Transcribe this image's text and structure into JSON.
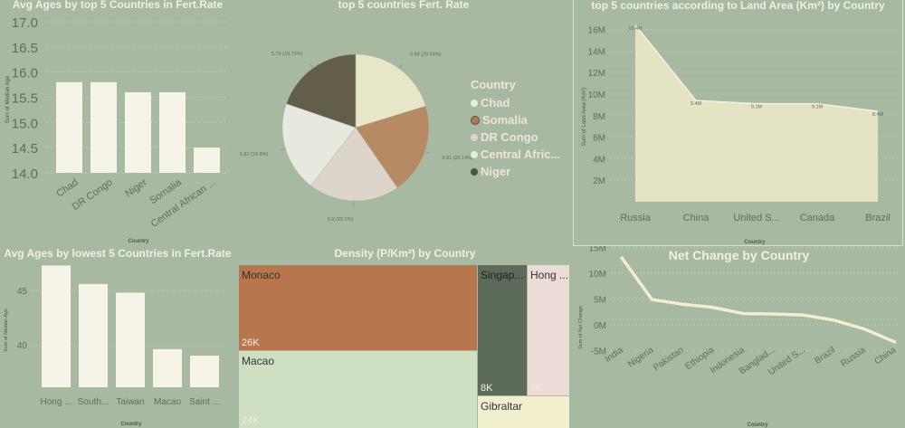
{
  "background": "#a7b9a0",
  "panels": {
    "top_bar": {
      "title": "Avg Ages by top 5 Countries in Fert.Rate"
    },
    "pie": {
      "title": "top 5 countries Fert. Rate",
      "legend_title": "Country"
    },
    "land_area": {
      "title": "top 5 countries according to Land Area (Km²) by Country"
    },
    "low_bar": {
      "title": "Avg Ages by lowest 5 Countries in Fert.Rate"
    },
    "treemap": {
      "title": "Density (P/Km²) by Country"
    },
    "net_change": {
      "title": "Net Change by Country"
    }
  },
  "chart_data": [
    {
      "id": "top_bar",
      "type": "bar",
      "title": "Avg Ages by top 5 Countries in Fert.Rate",
      "categories": [
        "Chad",
        "DR Congo",
        "Niger",
        "Somalia",
        "Central African ..."
      ],
      "values": [
        15.8,
        15.8,
        15.6,
        15.6,
        14.5
      ],
      "xlabel": "Country",
      "ylabel": "Sum of Median Age",
      "ylim": [
        14.0,
        17.0
      ],
      "yticks": [
        "14.0",
        "14.5",
        "15.0",
        "15.5",
        "16.0",
        "16.5",
        "17.0"
      ],
      "color": "#f6f3e9",
      "grid": true
    },
    {
      "id": "pie",
      "type": "pie",
      "title": "top 5 countries Fert. Rate",
      "legend_title": "Country",
      "categories": [
        "Chad",
        "Somalia",
        "DR Congo",
        "Central Afric...",
        "Niger"
      ],
      "values": [
        5.94,
        5.91,
        5.9,
        5.81,
        5.79
      ],
      "labels": [
        "5.94 (20.24%)",
        "5.91 (20.14%)",
        "5.9 (20.1%)",
        "5.81 (19.8%)",
        "5.79 (19.73%)"
      ],
      "colors": [
        "#e7e6c8",
        "#b68a62",
        "#ddd4cc",
        "#e8e9de",
        "#625e4a"
      ],
      "legend_colors": [
        "#dff0dc",
        "#b8764d",
        "#dcd2cc",
        "#dff0dc",
        "#4c5344"
      ],
      "legend_position": "right"
    },
    {
      "id": "land_area",
      "type": "area",
      "title": "top 5 countries according to Land Area (Km²) by Country",
      "categories": [
        "Russia",
        "China",
        "United S...",
        "Canada",
        "Brazil"
      ],
      "values": [
        16.4,
        9.4,
        9.1,
        9.1,
        8.4
      ],
      "labels": [
        "16.4M",
        "9.4M",
        "9.1M",
        "9.1M",
        "8.4M"
      ],
      "xlabel": "Country",
      "ylabel": "Sum of Land Area (Km²)",
      "ylim": [
        0,
        16.8
      ],
      "yticks": [
        "2M",
        "4M",
        "6M",
        "8M",
        "10M",
        "12M",
        "14M",
        "16M"
      ],
      "color": "#e4e3c4",
      "grid": true
    },
    {
      "id": "low_bar",
      "type": "bar",
      "title": "Avg Ages by lowest 5 Countries in Fert.Rate",
      "categories": [
        "Hong ...",
        "South...",
        "Taiwan",
        "Macao",
        "Saint ..."
      ],
      "values": [
        47.3,
        45.6,
        44.8,
        39.6,
        39.0
      ],
      "xlabel": "Country",
      "ylabel": "Sum of Median Age",
      "yticks": [
        "40",
        "45"
      ],
      "color": "#f6f3e9",
      "grid": true
    },
    {
      "id": "treemap",
      "type": "treemap",
      "title": "Density (P/Km²) by Country",
      "items": [
        {
          "name": "Monaco",
          "value": "26K",
          "color": "#b8764d"
        },
        {
          "name": "Macao",
          "value": "24K",
          "color": "#cfdfc2"
        },
        {
          "name": "Singap...",
          "value": "8K",
          "color": "#5c6b5a"
        },
        {
          "name": "Hong ...",
          "value": "7K",
          "color": "#ecdcd7"
        },
        {
          "name": "Gibraltar",
          "value": "",
          "color": "#f3f0cf"
        }
      ]
    },
    {
      "id": "net_change",
      "type": "line",
      "title": "Net Change by Country",
      "categories": [
        "India",
        "Nigeria",
        "Pakistan",
        "Ethiopia",
        "Indonesia",
        "Banglad...",
        "United S...",
        "Brazil",
        "Russia",
        "China"
      ],
      "values": [
        13.0,
        4.9,
        4.0,
        3.4,
        2.2,
        2.1,
        1.9,
        0.9,
        -0.8,
        -3.3
      ],
      "xlabel": "Country",
      "ylabel": "Sum of Net Change",
      "ylim": [
        -5,
        15
      ],
      "yticks": [
        "-5M",
        "0M",
        "5M",
        "10M",
        "15M"
      ],
      "color": "#f3eed0",
      "grid": true
    }
  ]
}
